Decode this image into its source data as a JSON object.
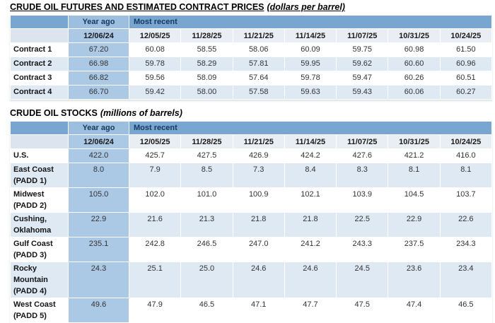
{
  "titles": {
    "futures": {
      "main": "CRUDE OIL FUTURES AND ESTIMATED CONTRACT PRICES",
      "unit": "(dollars per barrel)"
    },
    "stocks": {
      "main": "CRUDE OIL STOCKS",
      "unit": "(millions of barrels)"
    }
  },
  "header": {
    "year_ago_label": "Year ago",
    "most_recent_label": "Most recent",
    "year_ago_date": "12/06/24",
    "recent_dates": [
      "12/05/25",
      "11/28/25",
      "11/21/25",
      "11/14/25",
      "11/07/25",
      "10/31/25",
      "10/24/25"
    ]
  },
  "futures_table": {
    "rows": [
      {
        "label": "Contract 1",
        "year_ago": "67.20",
        "values": [
          "60.08",
          "58.55",
          "58.06",
          "60.09",
          "59.75",
          "60.98",
          "61.50"
        ]
      },
      {
        "label": "Contract 2",
        "year_ago": "66.98",
        "values": [
          "59.78",
          "58.29",
          "57.81",
          "59.95",
          "59.62",
          "60.60",
          "60.96"
        ]
      },
      {
        "label": "Contract 3",
        "year_ago": "66.82",
        "values": [
          "59.56",
          "58.09",
          "57.64",
          "59.78",
          "59.47",
          "60.26",
          "60.51"
        ]
      },
      {
        "label": "Contract 4",
        "year_ago": "66.70",
        "values": [
          "59.42",
          "58.00",
          "57.58",
          "59.63",
          "59.43",
          "60.06",
          "60.27"
        ]
      }
    ]
  },
  "stocks_table": {
    "rows": [
      {
        "label": "U.S.",
        "year_ago": "422.0",
        "values": [
          "425.7",
          "427.5",
          "426.9",
          "424.2",
          "427.6",
          "421.2",
          "416.0"
        ]
      },
      {
        "label": "East Coast (PADD 1)",
        "year_ago": "8.0",
        "values": [
          "7.9",
          "8.5",
          "7.3",
          "8.4",
          "8.3",
          "8.1",
          "8.1"
        ]
      },
      {
        "label": "Midwest (PADD 2)",
        "year_ago": "105.0",
        "values": [
          "102.0",
          "101.0",
          "100.9",
          "102.1",
          "103.9",
          "104.5",
          "103.7"
        ]
      },
      {
        "label": "Cushing, Oklahoma",
        "year_ago": "22.9",
        "values": [
          "21.6",
          "21.3",
          "21.8",
          "21.8",
          "22.5",
          "22.9",
          "22.6"
        ]
      },
      {
        "label": "Gulf Coast (PADD 3)",
        "year_ago": "235.1",
        "values": [
          "242.8",
          "246.5",
          "247.0",
          "241.2",
          "243.3",
          "237.5",
          "234.3"
        ]
      },
      {
        "label": "Rocky Mountain (PADD 4)",
        "year_ago": "24.3",
        "values": [
          "25.1",
          "25.0",
          "24.6",
          "24.6",
          "24.5",
          "23.6",
          "23.4"
        ]
      },
      {
        "label": "West Coast (PADD 5)",
        "year_ago": "49.6",
        "values": [
          "47.9",
          "46.5",
          "47.1",
          "47.7",
          "47.5",
          "47.4",
          "46.5"
        ]
      }
    ]
  },
  "colors": {
    "header_blue": "#78A6D1",
    "year_ago_header": "#9CBEDF",
    "date_corner_bg": "#DBE4EF",
    "date_row_bg": "#E9EEF5",
    "year_ago_col": "#ABC8E5",
    "band_blue": "#DEE9F4",
    "header_text": "#17375E",
    "value_text": "#333333"
  }
}
